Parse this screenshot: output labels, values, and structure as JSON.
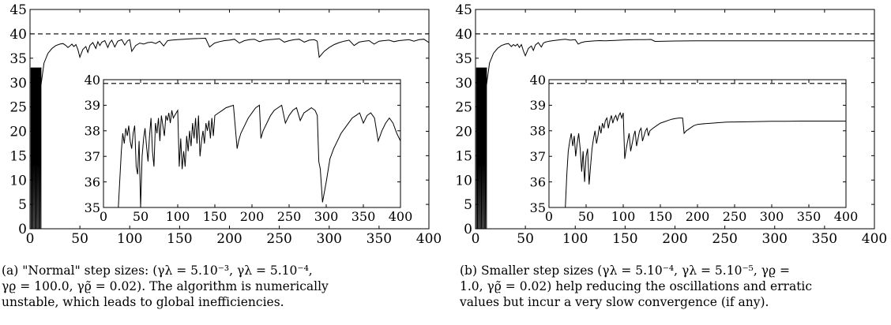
{
  "panels": [
    {
      "id": "a",
      "caption": {
        "lines": [
          "(a) \"Normal\" step sizes: (γλ = 5.10⁻³, γλ = 5.10⁻⁴,",
          "γϱ = 100.0, γϱ̃ = 0.02). The algorithm is numerically",
          "unstable, which leads to global inefficiencies."
        ]
      }
    },
    {
      "id": "b",
      "caption": {
        "lines": [
          "(b) Smaller step sizes (γλ = 5.10⁻⁴, γλ = 5.10⁻⁵, γϱ =",
          "1.0, γϱ̃ = 0.02) help reducing the oscillations and erratic",
          "values but incur a very slow convergence (if any)."
        ]
      }
    }
  ],
  "chart_data": [
    {
      "type": "line",
      "panel": "a",
      "xlim": [
        0,
        400
      ],
      "ylim": [
        0,
        45
      ],
      "xticks": [
        0,
        50,
        100,
        150,
        200,
        250,
        300,
        350,
        400
      ],
      "yticks": [
        0,
        5,
        10,
        15,
        20,
        25,
        30,
        35,
        40,
        45
      ],
      "reference_line": {
        "y": 40,
        "style": "dashed"
      },
      "init_oscillation": {
        "x_start": 1,
        "x_end": 11,
        "step": 1,
        "high": 33
      },
      "series": [
        {
          "x": [
            11,
            14,
            18,
            22,
            26,
            30,
            33,
            36,
            38,
            40,
            42,
            44,
            46,
            48,
            50,
            53,
            56,
            58,
            60,
            63,
            66,
            68,
            70,
            72,
            75,
            78,
            80,
            82,
            85,
            88,
            92,
            95,
            98,
            100,
            102,
            106,
            110,
            114,
            118,
            122,
            126,
            130,
            134,
            138,
            142,
            148,
            155,
            162,
            170,
            176,
            180,
            185,
            190,
            195,
            200,
            205,
            210,
            215,
            220,
            225,
            230,
            235,
            240,
            245,
            250,
            255,
            260,
            265,
            270,
            275,
            280,
            285,
            288,
            290,
            295,
            300,
            305,
            310,
            315,
            320,
            325,
            330,
            335,
            340,
            345,
            350,
            355,
            360,
            365,
            370,
            375,
            380,
            385,
            390,
            395,
            400
          ],
          "y": [
            29.5,
            34,
            36,
            37,
            37.6,
            37.9,
            38,
            37.6,
            37.2,
            37.5,
            37.9,
            37.4,
            37.8,
            36.8,
            35.2,
            36.8,
            37.4,
            36.2,
            37.6,
            38.2,
            37,
            38.4,
            37.6,
            38.3,
            38.6,
            37.2,
            38.2,
            38.7,
            37.3,
            38.5,
            38.8,
            37.7,
            38.6,
            38.8,
            36.4,
            37.6,
            38.1,
            37.9,
            38.2,
            38.3,
            38,
            38.5,
            37.5,
            38.6,
            38.7,
            38.8,
            38.9,
            39,
            39.05,
            39.1,
            37.3,
            38.1,
            38.4,
            38.6,
            38.7,
            38.9,
            38.1,
            38.6,
            38.8,
            38.9,
            38.4,
            38.7,
            38.8,
            38.9,
            39,
            38.3,
            38.6,
            38.8,
            38.9,
            38.3,
            38.7,
            38.8,
            38.5,
            35.2,
            36.4,
            37.2,
            37.8,
            38.2,
            38.5,
            38.7,
            37.6,
            38.3,
            38.5,
            38.6,
            37.9,
            38.5,
            38.6,
            38.7,
            38.4,
            38.6,
            38.7,
            38.8,
            38.5,
            38.8,
            38.9,
            38.2
          ]
        }
      ],
      "inset": {
        "xlim": [
          0,
          400
        ],
        "ylim": [
          35,
          40
        ],
        "xticks": [
          0,
          50,
          100,
          150,
          200,
          250,
          300,
          350,
          400
        ],
        "yticks": [
          35,
          36,
          37,
          38,
          39,
          40
        ],
        "reference_line": {
          "y": 39.85,
          "style": "dashed"
        },
        "series": [
          {
            "x": [
              20,
              24,
              26,
              28,
              30,
              32,
              34,
              36,
              38,
              40,
              42,
              44,
              46,
              48,
              50,
              52,
              54,
              56,
              58,
              60,
              62,
              64,
              66,
              68,
              70,
              72,
              74,
              76,
              78,
              80,
              82,
              84,
              86,
              88,
              90,
              92,
              94,
              96,
              98,
              100,
              102,
              104,
              106,
              108,
              110,
              112,
              114,
              116,
              118,
              120,
              122,
              124,
              126,
              128,
              130,
              132,
              134,
              136,
              138,
              140,
              142,
              144,
              146,
              148,
              150,
              155,
              160,
              165,
              170,
              175,
              180,
              182,
              185,
              190,
              195,
              200,
              205,
              210,
              212,
              215,
              220,
              225,
              230,
              235,
              240,
              245,
              250,
              255,
              260,
              265,
              270,
              275,
              280,
              285,
              288,
              290,
              292,
              295,
              300,
              305,
              310,
              315,
              320,
              325,
              330,
              335,
              340,
              345,
              350,
              355,
              360,
              365,
              370,
              375,
              380,
              385,
              390,
              395,
              400
            ],
            "y": [
              35,
              37.2,
              37.9,
              37.5,
              38.1,
              37.8,
              38.2,
              37.6,
              37.3,
              37.9,
              38.2,
              36.6,
              36.3,
              37.6,
              35.0,
              37.0,
              37.7,
              38.1,
              37.4,
              36.8,
              37.8,
              38.5,
              37.2,
              36.6,
              38.3,
              37.9,
              38.5,
              37.6,
              38.6,
              38.2,
              37.8,
              38.6,
              38.4,
              38.7,
              38.3,
              38.8,
              38.5,
              38.6,
              38.7,
              38.8,
              36.6,
              37.7,
              36.5,
              37.2,
              36.6,
              37.8,
              37.2,
              38.0,
              37.4,
              38.3,
              37.7,
              38.5,
              37.5,
              38.6,
              37.0,
              37.6,
              38.0,
              37.5,
              38.3,
              38.0,
              38.4,
              37.7,
              38.5,
              37.8,
              38.6,
              38.7,
              38.8,
              38.9,
              38.95,
              39.0,
              37.3,
              37.6,
              37.9,
              38.2,
              38.5,
              38.7,
              38.9,
              39.0,
              37.7,
              38.0,
              38.3,
              38.6,
              38.8,
              38.9,
              39.0,
              38.3,
              38.6,
              38.8,
              38.9,
              38.4,
              38.7,
              38.8,
              38.9,
              38.8,
              38.6,
              36.8,
              36.5,
              35.2,
              36.0,
              36.9,
              37.3,
              37.6,
              37.9,
              38.1,
              38.3,
              38.5,
              38.6,
              38.7,
              38.3,
              38.6,
              38.7,
              38.5,
              37.6,
              38.0,
              38.3,
              38.5,
              38.3,
              37.9,
              37.6
            ]
          }
        ]
      }
    },
    {
      "type": "line",
      "panel": "b",
      "xlim": [
        0,
        400
      ],
      "ylim": [
        0,
        45
      ],
      "xticks": [
        0,
        50,
        100,
        150,
        200,
        250,
        300,
        350,
        400
      ],
      "yticks": [
        0,
        5,
        10,
        15,
        20,
        25,
        30,
        35,
        40,
        45
      ],
      "reference_line": {
        "y": 40,
        "style": "dashed"
      },
      "init_oscillation": {
        "x_start": 1,
        "x_end": 11,
        "step": 1,
        "high": 33
      },
      "series": [
        {
          "x": [
            11,
            14,
            18,
            22,
            26,
            30,
            33,
            36,
            38,
            40,
            42,
            44,
            46,
            48,
            50,
            53,
            56,
            58,
            60,
            63,
            66,
            68,
            70,
            74,
            78,
            82,
            86,
            90,
            95,
            100,
            103,
            106,
            110,
            115,
            120,
            125,
            130,
            135,
            140,
            145,
            150,
            160,
            170,
            176,
            180,
            190,
            200,
            220,
            250,
            300,
            350,
            400
          ],
          "y": [
            29.5,
            34,
            36,
            37,
            37.6,
            37.9,
            38,
            37.4,
            37.8,
            37.5,
            37.9,
            37.2,
            37.8,
            36.5,
            35.5,
            37.0,
            37.5,
            36.6,
            37.7,
            38.2,
            37.3,
            38.1,
            38.3,
            38.5,
            38.6,
            38.7,
            38.8,
            38.9,
            38.7,
            38.8,
            37.9,
            38.2,
            38.4,
            38.5,
            38.55,
            38.6,
            38.55,
            38.6,
            38.65,
            38.7,
            38.75,
            38.8,
            38.8,
            38.85,
            38.45,
            38.5,
            38.52,
            38.55,
            38.55,
            38.56,
            38.56,
            38.56
          ]
        }
      ],
      "inset": {
        "xlim": [
          0,
          400
        ],
        "ylim": [
          35,
          40
        ],
        "xticks": [
          0,
          50,
          100,
          150,
          200,
          250,
          300,
          350,
          400
        ],
        "yticks": [
          35,
          36,
          37,
          38,
          39,
          40
        ],
        "reference_line": {
          "y": 39.85,
          "style": "dashed"
        },
        "series": [
          {
            "x": [
              22,
              24,
              26,
              28,
              30,
              32,
              34,
              36,
              38,
              40,
              42,
              44,
              46,
              48,
              50,
              52,
              54,
              56,
              58,
              60,
              62,
              64,
              66,
              68,
              70,
              72,
              74,
              76,
              78,
              80,
              82,
              84,
              86,
              88,
              90,
              92,
              94,
              96,
              98,
              100,
              102,
              104,
              106,
              108,
              110,
              112,
              114,
              116,
              118,
              120,
              122,
              124,
              126,
              128,
              130,
              132,
              134,
              136,
              140,
              145,
              150,
              155,
              160,
              165,
              170,
              175,
              180,
              182,
              185,
              190,
              195,
              200,
              210,
              220,
              230,
              240,
              260,
              280,
              300,
              320,
              340,
              360,
              380,
              400
            ],
            "y": [
              35,
              36.3,
              37.2,
              37.6,
              37.9,
              37.4,
              37.8,
              37.0,
              37.5,
              37.9,
              37.3,
              36.4,
              37.2,
              36.0,
              37.0,
              37.3,
              35.9,
              36.6,
              37.3,
              37.7,
              38.0,
              37.5,
              37.8,
              38.2,
              37.9,
              38.3,
              38.1,
              38.4,
              38.5,
              38.1,
              38.4,
              38.6,
              38.3,
              38.5,
              38.6,
              38.4,
              38.6,
              38.7,
              38.5,
              38.7,
              36.9,
              37.3,
              37.6,
              37.9,
              37.2,
              37.5,
              37.8,
              38.0,
              37.4,
              37.7,
              38.0,
              38.1,
              37.6,
              37.8,
              38.0,
              38.1,
              37.8,
              38.0,
              38.1,
              38.2,
              38.3,
              38.35,
              38.4,
              38.45,
              38.48,
              38.5,
              38.5,
              37.9,
              38.0,
              38.1,
              38.2,
              38.25,
              38.28,
              38.3,
              38.32,
              38.34,
              38.35,
              38.36,
              38.37,
              38.37,
              38.38,
              38.38,
              38.38,
              38.38
            ]
          }
        ]
      }
    }
  ]
}
